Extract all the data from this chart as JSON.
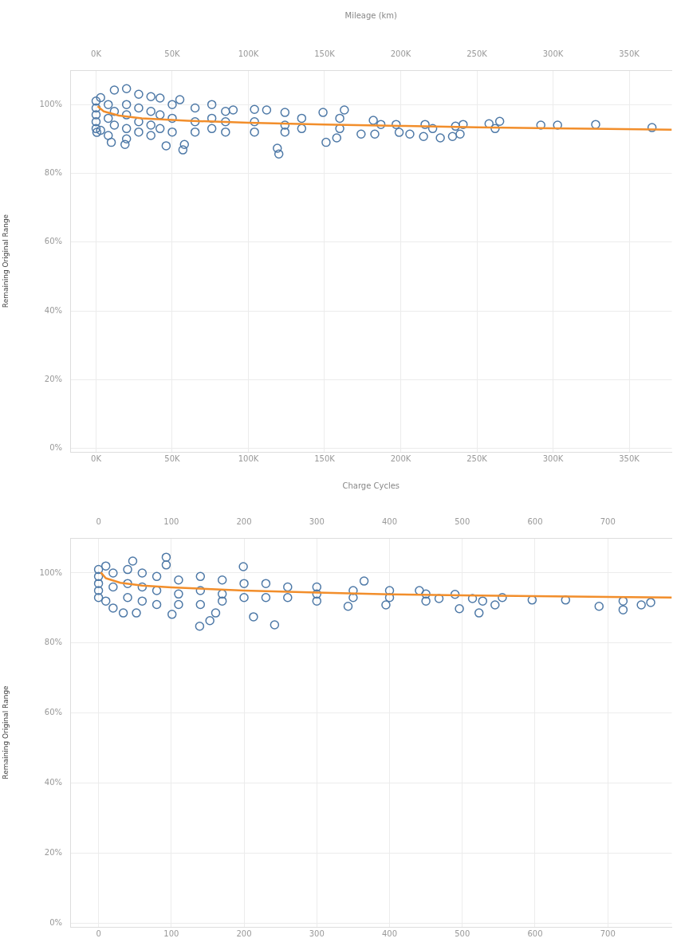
{
  "chart_data": [
    {
      "type": "scatter",
      "x2label": "Mileage (km)",
      "ylabel": "Remaining Original Range",
      "marker": "circle",
      "grid": true,
      "xlim": [
        -17000,
        378000
      ],
      "xticks": [
        {
          "value": 0,
          "label": "0K"
        },
        {
          "value": 50000,
          "label": "50K"
        },
        {
          "value": 100000,
          "label": "100K"
        },
        {
          "value": 150000,
          "label": "150K"
        },
        {
          "value": 200000,
          "label": "200K"
        },
        {
          "value": 250000,
          "label": "250K"
        },
        {
          "value": 300000,
          "label": "300K"
        },
        {
          "value": 350000,
          "label": "350K"
        }
      ],
      "x2lim": [
        -17000,
        378000
      ],
      "x2ticks": [
        {
          "value": 0,
          "label": "0K"
        },
        {
          "value": 50000,
          "label": "50K"
        },
        {
          "value": 100000,
          "label": "100K"
        },
        {
          "value": 150000,
          "label": "150K"
        },
        {
          "value": 200000,
          "label": "200K"
        },
        {
          "value": 250000,
          "label": "250K"
        },
        {
          "value": 300000,
          "label": "300K"
        },
        {
          "value": 350000,
          "label": "350K"
        }
      ],
      "ylim": [
        -1,
        110
      ],
      "yticks": [
        {
          "value": 0,
          "label": "0%"
        },
        {
          "value": 20,
          "label": "20%"
        },
        {
          "value": 40,
          "label": "40%"
        },
        {
          "value": 60,
          "label": "60%"
        },
        {
          "value": 80,
          "label": "80%"
        },
        {
          "value": 100,
          "label": "100%"
        }
      ],
      "series": [
        {
          "type": "scatter",
          "color": "#4e79a7",
          "x": [
            0,
            0,
            0,
            0,
            0,
            500,
            3000,
            3000,
            8000,
            8000,
            8000,
            10000,
            12000,
            12000,
            12000,
            19000,
            20000,
            20000,
            20000,
            20000,
            20000,
            28000,
            28000,
            28000,
            28000,
            36000,
            36000,
            36000,
            36000,
            42000,
            42000,
            42000,
            46000,
            50000,
            50000,
            50000,
            55000,
            57000,
            58000,
            65000,
            65000,
            65000,
            76000,
            76000,
            76000,
            85000,
            85000,
            85000,
            90000,
            104000,
            104000,
            104000,
            112000,
            119000,
            120000,
            124000,
            124000,
            124000,
            135000,
            135000,
            149000,
            151000,
            158000,
            160000,
            160000,
            163000,
            174000,
            182000,
            183000,
            187000,
            197000,
            199000,
            206000,
            215000,
            216000,
            221000,
            226000,
            234000,
            236000,
            239000,
            241000,
            258000,
            262000,
            265000,
            292000,
            303000,
            328000,
            365000
          ],
          "values": [
            101,
            99,
            97,
            95,
            93,
            91.9,
            102,
            92.5,
            100,
            96,
            91,
            89,
            104.2,
            98,
            94,
            88.4,
            104.6,
            100,
            97,
            93,
            90,
            103,
            99,
            95,
            92,
            102.3,
            98,
            94,
            91,
            101.9,
            97,
            93,
            88,
            100,
            96,
            92,
            101.4,
            86.8,
            88.4,
            99,
            95,
            92,
            100,
            96,
            93,
            98,
            95,
            92,
            98.4,
            98.6,
            95,
            92,
            98.4,
            87.3,
            85.6,
            97.7,
            94,
            92,
            96,
            93,
            97.7,
            89,
            90.3,
            96,
            93,
            98.4,
            91.4,
            95.4,
            91.4,
            94.2,
            94.2,
            91.9,
            91.4,
            90.7,
            94.2,
            93,
            90.3,
            90.7,
            93.7,
            91.4,
            94.2,
            94.4,
            93,
            95.1,
            94,
            94,
            94.2,
            93.3
          ]
        },
        {
          "type": "line",
          "color": "#f28e2b",
          "marker": "none",
          "x": [
            1000,
            5000,
            15000,
            30000,
            60000,
            100000,
            150000,
            200000,
            250000,
            300000,
            378000
          ],
          "values": [
            99.5,
            98,
            96.8,
            96,
            95.3,
            94.7,
            94.2,
            93.8,
            93.4,
            93.1,
            92.7
          ]
        }
      ]
    },
    {
      "type": "scatter",
      "x2label": "Charge Cycles",
      "ylabel": "Remaining Original Range",
      "marker": "circle",
      "grid": true,
      "xlim": [
        -39,
        788
      ],
      "xticks": [
        0,
        100,
        200,
        300,
        400,
        500,
        600,
        700
      ],
      "x2lim": [
        -39,
        788
      ],
      "x2ticks": [
        0,
        100,
        200,
        300,
        400,
        500,
        600,
        700
      ],
      "ylim": [
        -1,
        110
      ],
      "yticks": [
        {
          "value": 0,
          "label": "0%"
        },
        {
          "value": 20,
          "label": "20%"
        },
        {
          "value": 40,
          "label": "40%"
        },
        {
          "value": 60,
          "label": "60%"
        },
        {
          "value": 80,
          "label": "80%"
        },
        {
          "value": 100,
          "label": "100%"
        }
      ],
      "series": [
        {
          "type": "scatter",
          "color": "#4e79a7",
          "x": [
            0,
            0,
            0,
            0,
            0,
            10,
            10,
            20,
            20,
            20,
            34,
            40,
            40,
            40,
            47,
            52,
            60,
            60,
            60,
            80,
            80,
            80,
            93,
            93,
            101,
            110,
            110,
            110,
            139,
            140,
            140,
            140,
            153,
            161,
            170,
            170,
            170,
            199,
            200,
            200,
            213,
            230,
            230,
            242,
            260,
            260,
            300,
            300,
            300,
            343,
            350,
            350,
            365,
            395,
            400,
            400,
            441,
            450,
            450,
            468,
            490,
            496,
            514,
            523,
            528,
            545,
            555,
            596,
            642,
            688,
            721,
            721,
            746,
            759
          ],
          "values": [
            101,
            99,
            97,
            95,
            93,
            102,
            92,
            100,
            96,
            90,
            88.6,
            101,
            97,
            93,
            103.4,
            88.6,
            100,
            96,
            92,
            99,
            95,
            91,
            104.5,
            102.3,
            88.2,
            98,
            94,
            91,
            84.8,
            99,
            95,
            91,
            86.4,
            88.6,
            98,
            94,
            92,
            101.8,
            97,
            93,
            87.5,
            97,
            93,
            85.2,
            96,
            93,
            96,
            94,
            92,
            90.5,
            95,
            93,
            97.7,
            90.9,
            95,
            93,
            95,
            94,
            92,
            92.7,
            93.9,
            89.8,
            92.7,
            88.6,
            92,
            90.9,
            93,
            92.3,
            92.3,
            90.5,
            92,
            89.5,
            90.9,
            91.6
          ]
        },
        {
          "type": "line",
          "color": "#f28e2b",
          "marker": "none",
          "x": [
            3,
            10,
            30,
            60,
            100,
            200,
            300,
            400,
            500,
            600,
            788
          ],
          "values": [
            100.2,
            98.5,
            97.2,
            96.4,
            95.9,
            95,
            94.4,
            93.9,
            93.6,
            93.4,
            93
          ]
        }
      ]
    }
  ]
}
